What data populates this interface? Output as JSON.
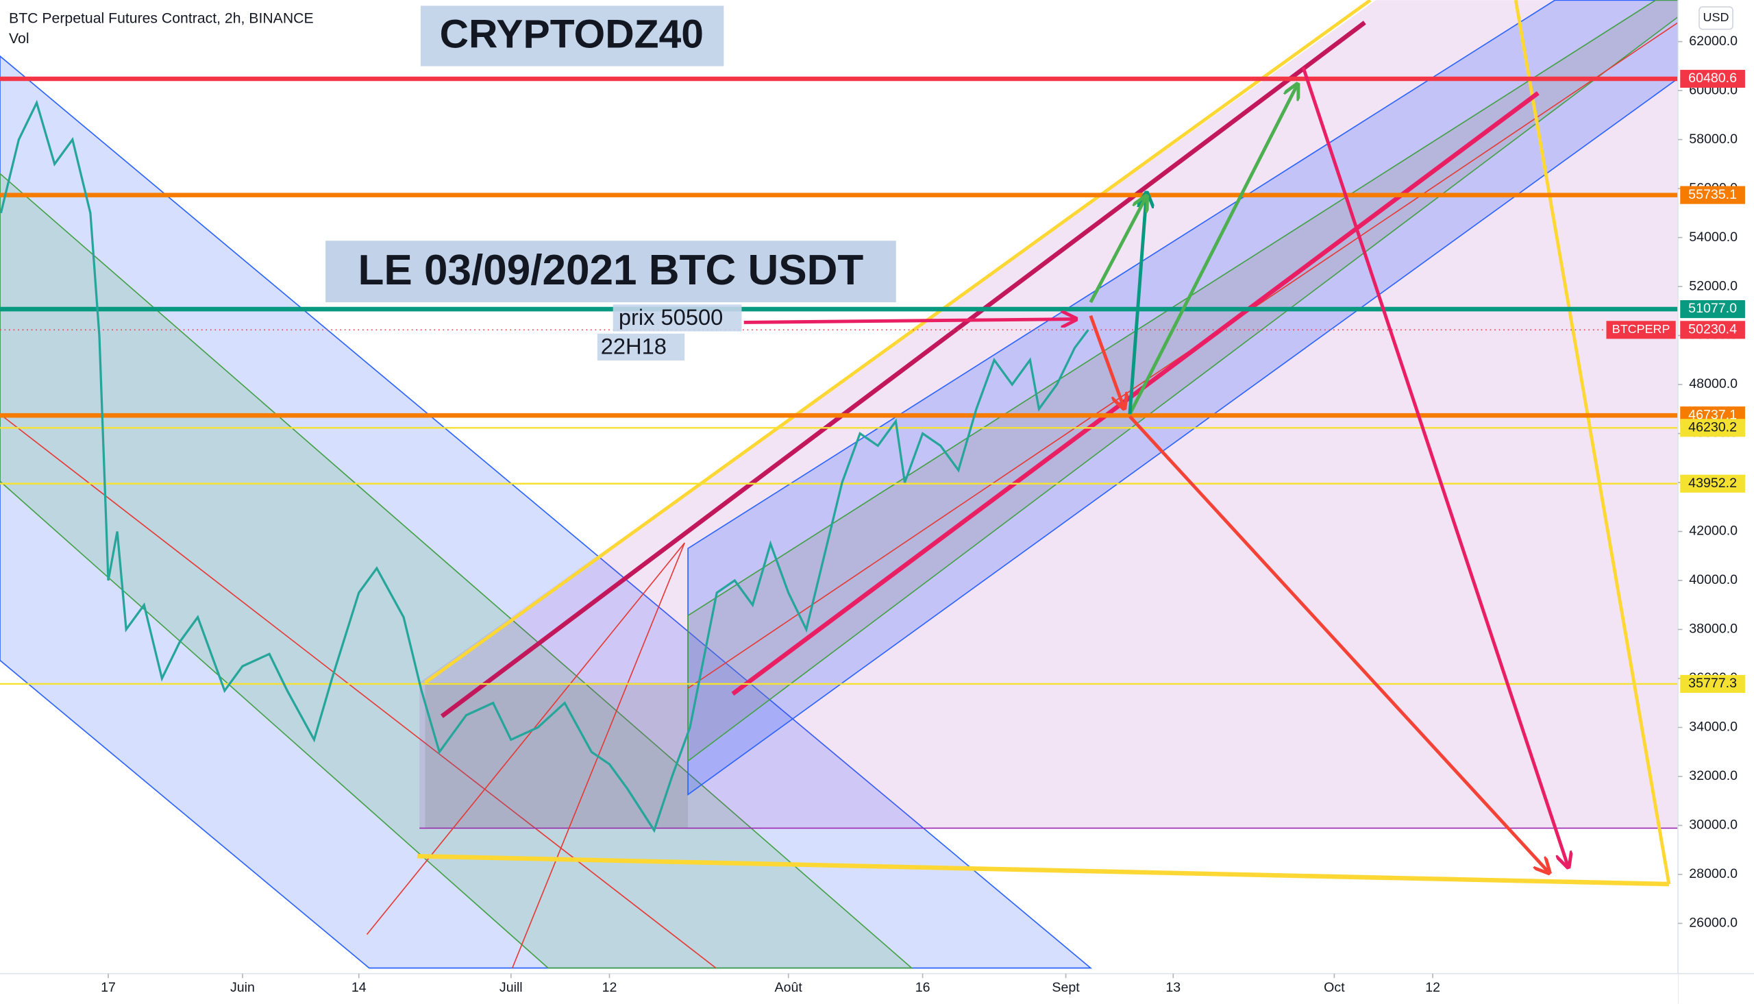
{
  "chart_data": {
    "type": "line",
    "title": "BTC Perpetual Futures Contract, 2h, BINANCE",
    "volume_label": "Vol",
    "currency": "USD",
    "annotations": [
      "CRYPTODZ40",
      "LE 03/09/2021 BTC USDT",
      "prix 50500",
      "22H18"
    ],
    "series": [
      {
        "name": "BTCPERP",
        "color": "#26a69a",
        "x": [
          125,
          127,
          129,
          131,
          133,
          135,
          136,
          137,
          138,
          139,
          141,
          143,
          145,
          147,
          150,
          152,
          155,
          157,
          160,
          162,
          165,
          167,
          170,
          172,
          174,
          177,
          180,
          182,
          185,
          188,
          191,
          193,
          195,
          198,
          200,
          202,
          205,
          207,
          209,
          211,
          213,
          215,
          217,
          219,
          221,
          223,
          225,
          226,
          228,
          230,
          232,
          234,
          236,
          238,
          240,
          241,
          243,
          245,
          246.5
        ],
        "values": [
          55000,
          58000,
          59500,
          57000,
          58000,
          55000,
          50000,
          40000,
          42000,
          38000,
          39000,
          36000,
          37500,
          38500,
          35500,
          36500,
          37000,
          35500,
          33500,
          36000,
          39500,
          40500,
          38500,
          35500,
          33000,
          34500,
          35000,
          33500,
          34000,
          35000,
          33000,
          32500,
          31500,
          29800,
          32000,
          34000,
          39500,
          40000,
          39000,
          41500,
          39500,
          38000,
          41000,
          44000,
          46000,
          45500,
          46500,
          44000,
          46000,
          45500,
          44500,
          47000,
          49000,
          48000,
          49000,
          47000,
          48000,
          49500,
          50230
        ]
      }
    ],
    "current_price": {
      "name": "BTCPERP",
      "value": 50230.4
    },
    "levels": [
      {
        "value": 60480.6,
        "color": "#f23645"
      },
      {
        "value": 55735.1,
        "color": "#f57c00"
      },
      {
        "value": 51077,
        "label": "51077.0",
        "color": "#089981"
      },
      {
        "value": 46737.1,
        "color": "#f57c00"
      },
      {
        "value": 46230.2,
        "color": "#f5e130"
      },
      {
        "value": 43952.2,
        "color": "#f5e130"
      },
      {
        "value": 35777.3,
        "color": "#f5e130"
      }
    ],
    "xlim": [
      124.9,
      312.4
    ],
    "ylim": [
      23950,
      63690
    ],
    "xticks": [
      {
        "value": 137,
        "label": "17"
      },
      {
        "value": 152,
        "label": "Juin"
      },
      {
        "value": 165,
        "label": "14"
      },
      {
        "value": 182,
        "label": "Juill"
      },
      {
        "value": 193,
        "label": "12"
      },
      {
        "value": 213,
        "label": "Août"
      },
      {
        "value": 228,
        "label": "16"
      },
      {
        "value": 244,
        "label": "Sept"
      },
      {
        "value": 256,
        "label": "13"
      },
      {
        "value": 274,
        "label": "Oct"
      },
      {
        "value": 285,
        "label": "12"
      }
    ],
    "yticks": [
      {
        "value": 26000,
        "label": "26000.0"
      },
      {
        "value": 28000,
        "label": "28000.0"
      },
      {
        "value": 30000,
        "label": "30000.0"
      },
      {
        "value": 32000,
        "label": "32000.0"
      },
      {
        "value": 34000,
        "label": "34000.0"
      },
      {
        "value": 36000,
        "label": "36000.0"
      },
      {
        "value": 38000,
        "label": "38000.0"
      },
      {
        "value": 40000,
        "label": "40000.0"
      },
      {
        "value": 42000,
        "label": "42000.0"
      },
      {
        "value": 44000,
        "label": "44000.0"
      },
      {
        "value": 46000,
        "label": "46000.0"
      },
      {
        "value": 48000,
        "label": "48000.0"
      },
      {
        "value": 50000,
        "label": "50000.0"
      },
      {
        "value": 52000,
        "label": "52000.0"
      },
      {
        "value": 54000,
        "label": "54000.0"
      },
      {
        "value": 56000,
        "label": "56000.0"
      },
      {
        "value": 58000,
        "label": "58000.0"
      },
      {
        "value": 60000,
        "label": "60000.0"
      },
      {
        "value": 62000,
        "label": "62000.0"
      }
    ]
  }
}
